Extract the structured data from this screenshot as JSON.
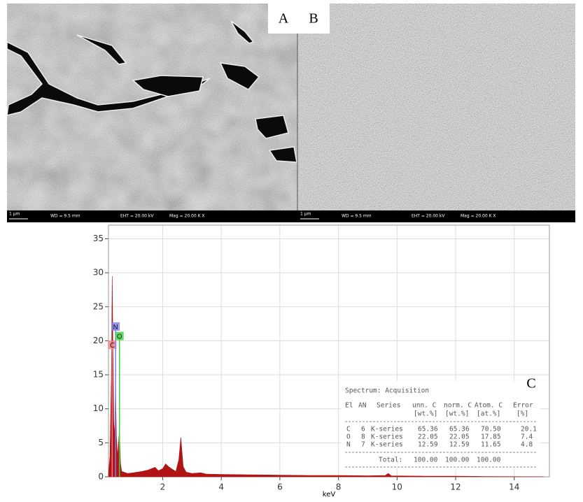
{
  "sem_panels": [
    {
      "label": "A",
      "scale": "1 µm",
      "wd": "WD = 9.5 mm",
      "eht": "EHT = 20.00 kV",
      "mag": "Mag = 20.00 K X"
    },
    {
      "label": "B",
      "scale": "1 µm",
      "wd": "WD = 9.5 mm",
      "eht": "EHT = 20.00 kV",
      "mag": "Mag = 20.00 K X"
    }
  ],
  "chart_data": {
    "type": "area",
    "panel_label": "C",
    "x_label": "keV",
    "xlim": [
      0.15,
      15.2
    ],
    "ylim": [
      0,
      37
    ],
    "xticks": [
      2,
      4,
      6,
      8,
      10,
      12,
      14
    ],
    "yticks": [
      0,
      5,
      10,
      15,
      20,
      25,
      30,
      35
    ],
    "grid": true,
    "series": [
      {
        "color": "#b01414",
        "x": [
          0.15,
          0.2,
          0.25,
          0.277,
          0.3,
          0.33,
          0.36,
          0.392,
          0.42,
          0.46,
          0.525,
          0.56,
          0.6,
          0.8,
          1.0,
          1.3,
          1.5,
          1.74,
          1.85,
          2.0,
          2.1,
          2.2,
          2.3,
          2.45,
          2.55,
          2.62,
          2.7,
          2.8,
          3.0,
          3.3,
          3.5,
          4.0,
          5.0,
          6.0,
          7.0,
          8.0,
          9.0,
          9.6,
          9.7,
          9.8,
          11.0,
          12.0,
          13.0,
          15.0
        ],
        "values": [
          0.5,
          3,
          15,
          29.5,
          20,
          8,
          6,
          14,
          6,
          3,
          7,
          2,
          0.8,
          0.5,
          0.6,
          0.8,
          1.0,
          1.4,
          0.9,
          1.2,
          1.9,
          1.5,
          1.2,
          0.8,
          2.5,
          5.8,
          1.5,
          0.7,
          0.5,
          0.6,
          0.4,
          0.35,
          0.3,
          0.25,
          0.2,
          0.2,
          0.15,
          0.2,
          0.5,
          0.15,
          0.1,
          0.1,
          0.05,
          0.02
        ]
      }
    ],
    "markers": [
      {
        "label": "C",
        "x": 0.277,
        "y": 19.4,
        "color": "#f08080"
      },
      {
        "label": "N",
        "x": 0.392,
        "y": 22.1,
        "color": "#8080f0"
      },
      {
        "label": "O",
        "x": 0.525,
        "y": 20.7,
        "color": "#40d040"
      }
    ],
    "table": {
      "title": "Spectrum: Acquisition",
      "header": [
        "El",
        "AN",
        "Series",
        "unn. C",
        "norm. C",
        "Atom. C",
        "Error"
      ],
      "units": [
        "[wt.%]",
        "[wt.%]",
        "[at.%]",
        "[%]"
      ],
      "rows": [
        [
          "C",
          "6",
          "K-series",
          "65.36",
          "65.36",
          "70.50",
          "20.1"
        ],
        [
          "O",
          "8",
          "K-series",
          "22.05",
          "22.05",
          "17.85",
          "7.4"
        ],
        [
          "N",
          "7",
          "K-series",
          "12.59",
          "12.59",
          "11.65",
          "4.8"
        ]
      ],
      "total_label": "Total:",
      "total": [
        "100.00",
        "100.00",
        "100.00"
      ]
    }
  }
}
